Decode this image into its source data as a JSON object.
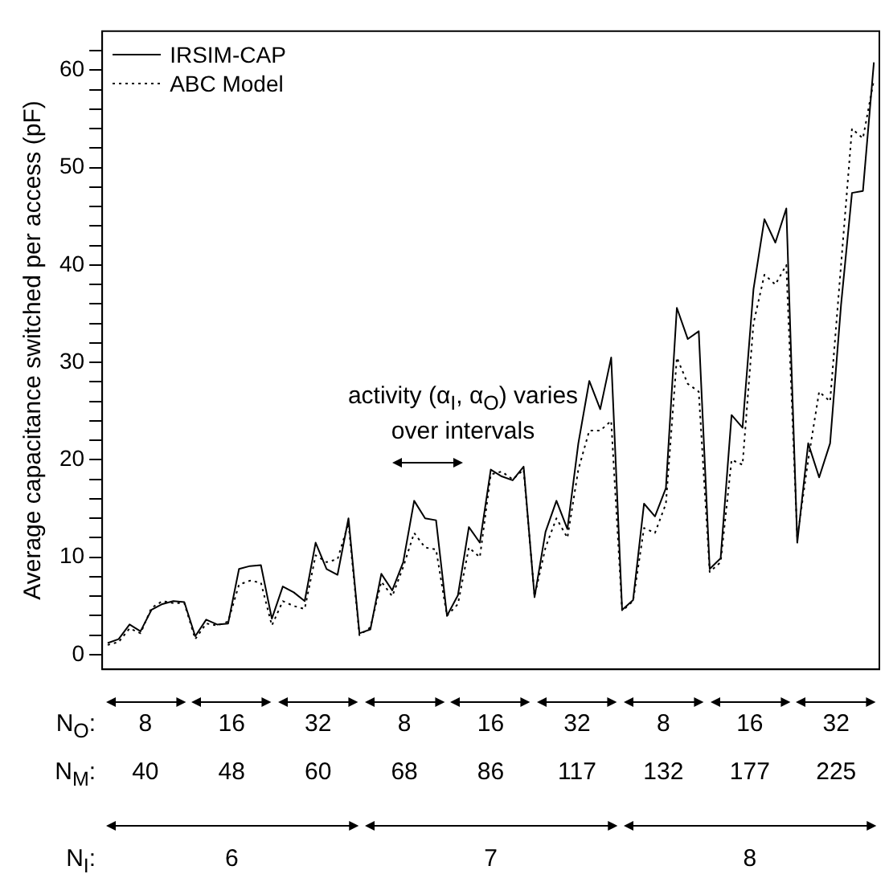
{
  "chart_data": {
    "type": "line",
    "ylabel": "Average capacitance switched per access (pF)",
    "categories": [
      null,
      null,
      null,
      null,
      null,
      null,
      null,
      null,
      null,
      null,
      null,
      null,
      null,
      null,
      null,
      null,
      null,
      null,
      null,
      null,
      null,
      null,
      null,
      null,
      null,
      null,
      null,
      null,
      null,
      null,
      null,
      null,
      null,
      null,
      null,
      null,
      null,
      null,
      null,
      null,
      null,
      null,
      null,
      null,
      null,
      null,
      null,
      null,
      null,
      null,
      null,
      null,
      null,
      null,
      null,
      null,
      null,
      null,
      null,
      null,
      null,
      null,
      null,
      null,
      null,
      null,
      null,
      null,
      null,
      null,
      null
    ],
    "series": [
      {
        "name": "IRSIM-CAP",
        "color": "#000000",
        "line_style": "solid",
        "values": [
          1.2,
          1.6,
          3.1,
          2.4,
          4.6,
          5.2,
          5.5,
          5.4,
          1.9,
          3.6,
          3.1,
          3.2,
          8.8,
          9.1,
          9.2,
          3.7,
          7.0,
          6.4,
          5.5,
          11.5,
          8.8,
          8.2,
          14.0,
          2.2,
          2.6,
          8.3,
          6.6,
          9.5,
          15.8,
          14.0,
          13.8,
          4.0,
          6.1,
          13.1,
          11.5,
          19.0,
          18.3,
          17.9,
          19.3,
          5.9,
          12.6,
          15.8,
          12.9,
          21.7,
          28.1,
          25.2,
          30.5,
          4.6,
          5.6,
          15.5,
          14.2,
          17.1,
          35.6,
          32.4,
          33.2,
          8.8,
          9.9,
          24.6,
          23.3,
          37.5,
          44.7,
          42.3,
          45.8,
          11.5,
          21.7,
          18.2,
          21.7,
          35.9,
          47.4,
          47.6,
          60.8
        ]
      },
      {
        "name": "ABC Model",
        "color": "#000000",
        "line_style": "dotted",
        "values": [
          1.0,
          1.3,
          2.7,
          2.2,
          4.8,
          5.5,
          5.3,
          5.3,
          1.6,
          3.2,
          3.0,
          3.4,
          7.2,
          7.6,
          7.4,
          3.0,
          5.5,
          5.0,
          4.7,
          10.2,
          9.5,
          9.8,
          13.5,
          2.0,
          2.8,
          7.5,
          6.0,
          9.0,
          12.5,
          11.0,
          10.8,
          4.0,
          5.2,
          11.0,
          10.0,
          18.5,
          18.8,
          18.0,
          19.0,
          6.0,
          11.0,
          14.0,
          12.0,
          19.0,
          23.0,
          23.0,
          24.0,
          4.5,
          5.5,
          13.0,
          12.5,
          15.5,
          30.5,
          27.8,
          27.0,
          8.5,
          9.5,
          20.0,
          19.5,
          34.0,
          39.0,
          38.0,
          40.0,
          12.0,
          20.0,
          27.0,
          26.0,
          40.0,
          54.0,
          53.0,
          59.0
        ]
      }
    ],
    "ylim": [
      -1.5,
      64
    ],
    "yticks": [
      0,
      {
        "value": 2,
        "label": null
      },
      {
        "value": 4,
        "label": null
      },
      {
        "value": 6,
        "label": null
      },
      {
        "value": 8,
        "label": null
      },
      10,
      {
        "value": 12,
        "label": null
      },
      {
        "value": 14,
        "label": null
      },
      {
        "value": 16,
        "label": null
      },
      {
        "value": 18,
        "label": null
      },
      20,
      {
        "value": 22,
        "label": null
      },
      {
        "value": 24,
        "label": null
      },
      {
        "value": 26,
        "label": null
      },
      {
        "value": 28,
        "label": null
      },
      30,
      {
        "value": 32,
        "label": null
      },
      {
        "value": 34,
        "label": null
      },
      {
        "value": 36,
        "label": null
      },
      {
        "value": 38,
        "label": null
      },
      40,
      {
        "value": 42,
        "label": null
      },
      {
        "value": 44,
        "label": null
      },
      {
        "value": 46,
        "label": null
      },
      {
        "value": 48,
        "label": null
      },
      50,
      {
        "value": 52,
        "label": null
      },
      {
        "value": 54,
        "label": null
      },
      {
        "value": 56,
        "label": null
      },
      {
        "value": 58,
        "label": null
      },
      60,
      {
        "value": 62,
        "label": null
      }
    ],
    "grid": false,
    "legend": "top left",
    "annotations": [
      "activity (α$_{I}$, α$_{O}$) varies over intervals",
      "N$_{O}$:",
      "8",
      "16",
      "32",
      "8",
      "16",
      "32",
      "8",
      "16",
      "32",
      "N$_{M}$:",
      "40",
      "48",
      "60",
      "68",
      "86",
      "117",
      "132",
      "177",
      "225",
      "N$_{I}$:",
      "6",
      "7",
      "8"
    ]
  }
}
